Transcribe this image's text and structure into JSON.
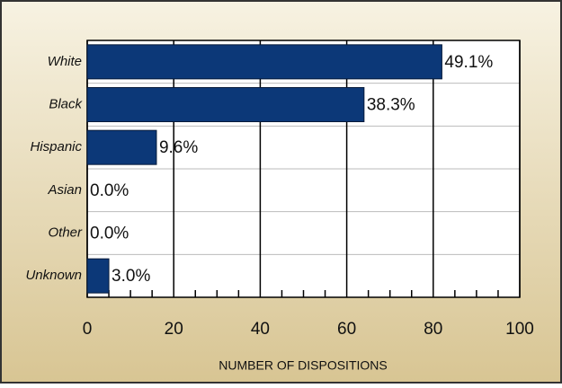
{
  "chart_data": {
    "type": "barh",
    "categories": [
      "White",
      "Black",
      "Hispanic",
      "Asian",
      "Other",
      "Unknown"
    ],
    "values": [
      82,
      64,
      16,
      0,
      0,
      5
    ],
    "data_labels": [
      "49.1%",
      "38.3%",
      "9.6%",
      "0.0%",
      "0.0%",
      "3.0%"
    ],
    "color": "#0c3878",
    "xlabel": "NUMBER OF DISPOSITIONS",
    "xlim": [
      0,
      100
    ],
    "xticks": [
      0,
      20,
      40,
      60,
      80,
      100
    ],
    "xminorticks": [
      5,
      10,
      15,
      25,
      30,
      35,
      45,
      50,
      55,
      65,
      70,
      75,
      85,
      90,
      95
    ],
    "grid": true
  }
}
